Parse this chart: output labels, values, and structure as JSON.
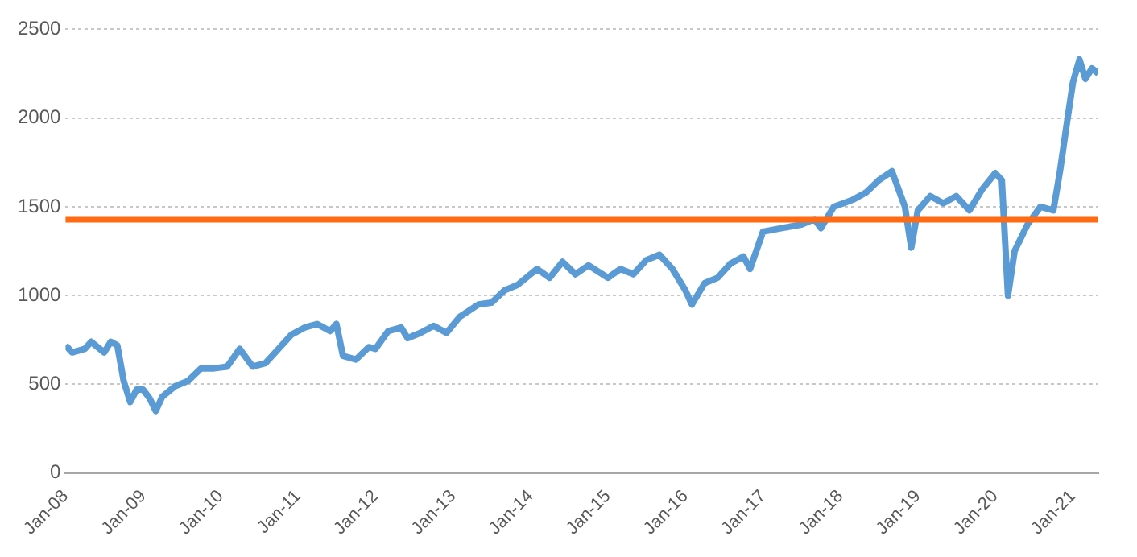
{
  "chart_data": {
    "type": "line",
    "x": [
      "2008-01",
      "2008-02",
      "2008-04",
      "2008-05",
      "2008-07",
      "2008-08",
      "2008-09",
      "2008-10",
      "2008-11",
      "2008-12",
      "2009-01",
      "2009-02",
      "2009-03",
      "2009-04",
      "2009-06",
      "2009-08",
      "2009-10",
      "2009-12",
      "2010-02",
      "2010-04",
      "2010-06",
      "2010-08",
      "2010-10",
      "2010-12",
      "2011-02",
      "2011-04",
      "2011-06",
      "2011-07",
      "2011-08",
      "2011-10",
      "2011-12",
      "2012-01",
      "2012-03",
      "2012-05",
      "2012-06",
      "2012-08",
      "2012-10",
      "2012-12",
      "2013-02",
      "2013-05",
      "2013-07",
      "2013-09",
      "2013-11",
      "2014-02",
      "2014-04",
      "2014-06",
      "2014-08",
      "2014-10",
      "2015-01",
      "2015-03",
      "2015-05",
      "2015-07",
      "2015-09",
      "2015-11",
      "2016-01",
      "2016-02",
      "2016-04",
      "2016-06",
      "2016-08",
      "2016-10",
      "2016-11",
      "2017-01",
      "2017-04",
      "2017-07",
      "2017-09",
      "2017-10",
      "2017-12",
      "2018-03",
      "2018-05",
      "2018-07",
      "2018-09",
      "2018-11",
      "2018-12",
      "2019-01",
      "2019-03",
      "2019-05",
      "2019-07",
      "2019-09",
      "2019-11",
      "2020-01",
      "2020-02",
      "2020-03",
      "2020-04",
      "2020-06",
      "2020-08",
      "2020-10",
      "2020-11",
      "2020-12",
      "2021-01",
      "2021-02",
      "2021-03",
      "2021-04",
      "2021-05"
    ],
    "series": [
      {
        "color": "#5b9bd5",
        "values": [
          720,
          680,
          700,
          740,
          680,
          740,
          720,
          520,
          400,
          470,
          470,
          420,
          350,
          430,
          490,
          520,
          590,
          590,
          600,
          700,
          600,
          620,
          700,
          780,
          820,
          840,
          800,
          840,
          660,
          640,
          710,
          700,
          800,
          820,
          760,
          790,
          830,
          790,
          880,
          950,
          960,
          1030,
          1060,
          1150,
          1100,
          1190,
          1120,
          1170,
          1100,
          1150,
          1120,
          1200,
          1230,
          1150,
          1030,
          950,
          1070,
          1100,
          1180,
          1220,
          1150,
          1360,
          1380,
          1400,
          1430,
          1380,
          1500,
          1540,
          1580,
          1650,
          1700,
          1500,
          1270,
          1480,
          1560,
          1520,
          1560,
          1480,
          1600,
          1690,
          1650,
          1000,
          1250,
          1400,
          1500,
          1480,
          1700,
          1950,
          2200,
          2330,
          2220,
          2280,
          2250
        ]
      }
    ],
    "xlim": [
      "2008-01",
      "2021-05"
    ],
    "xticks": [
      {
        "value": "2008-01",
        "label": "Jan-08"
      },
      {
        "value": "2009-01",
        "label": "Jan-09"
      },
      {
        "value": "2010-01",
        "label": "Jan-10"
      },
      {
        "value": "2011-01",
        "label": "Jan-11"
      },
      {
        "value": "2012-01",
        "label": "Jan-12"
      },
      {
        "value": "2013-01",
        "label": "Jan-13"
      },
      {
        "value": "2014-01",
        "label": "Jan-14"
      },
      {
        "value": "2015-01",
        "label": "Jan-15"
      },
      {
        "value": "2016-01",
        "label": "Jan-16"
      },
      {
        "value": "2017-01",
        "label": "Jan-17"
      },
      {
        "value": "2018-01",
        "label": "Jan-18"
      },
      {
        "value": "2019-01",
        "label": "Jan-19"
      },
      {
        "value": "2020-01",
        "label": "Jan-20"
      },
      {
        "value": "2021-01",
        "label": "Jan-21"
      }
    ],
    "ylim": [
      0,
      2500
    ],
    "yticks": [
      0,
      500,
      1000,
      1500,
      2000,
      2500
    ],
    "ref_lines": [
      {
        "axis": "y",
        "value": 1430,
        "color": "#ff6a13"
      }
    ],
    "grid": "y",
    "legend": false,
    "marker": "none",
    "line_style": "solid"
  }
}
